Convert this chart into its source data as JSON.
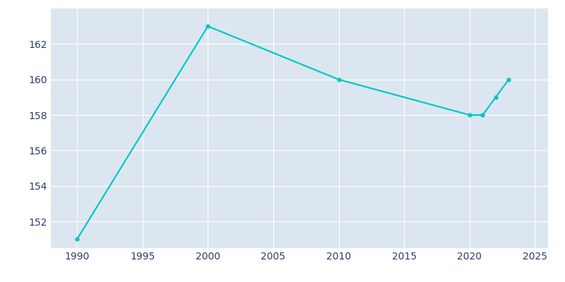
{
  "years": [
    1990,
    2000,
    2010,
    2020,
    2021,
    2022,
    2023
  ],
  "population": [
    151,
    163,
    160,
    158,
    158,
    159,
    160
  ],
  "line_color": "#00c8c8",
  "marker": "o",
  "marker_size": 3.5,
  "linewidth": 1.6,
  "bg_color": "#ffffff",
  "plot_bg_color": "#dce6f0",
  "grid_color": "#ffffff",
  "tick_color": "#2e3a6e",
  "xlim": [
    1988,
    2026
  ],
  "ylim": [
    150.5,
    164.0
  ],
  "xticks": [
    1990,
    1995,
    2000,
    2005,
    2010,
    2015,
    2020,
    2025
  ],
  "yticks": [
    152,
    154,
    156,
    158,
    160,
    162
  ]
}
